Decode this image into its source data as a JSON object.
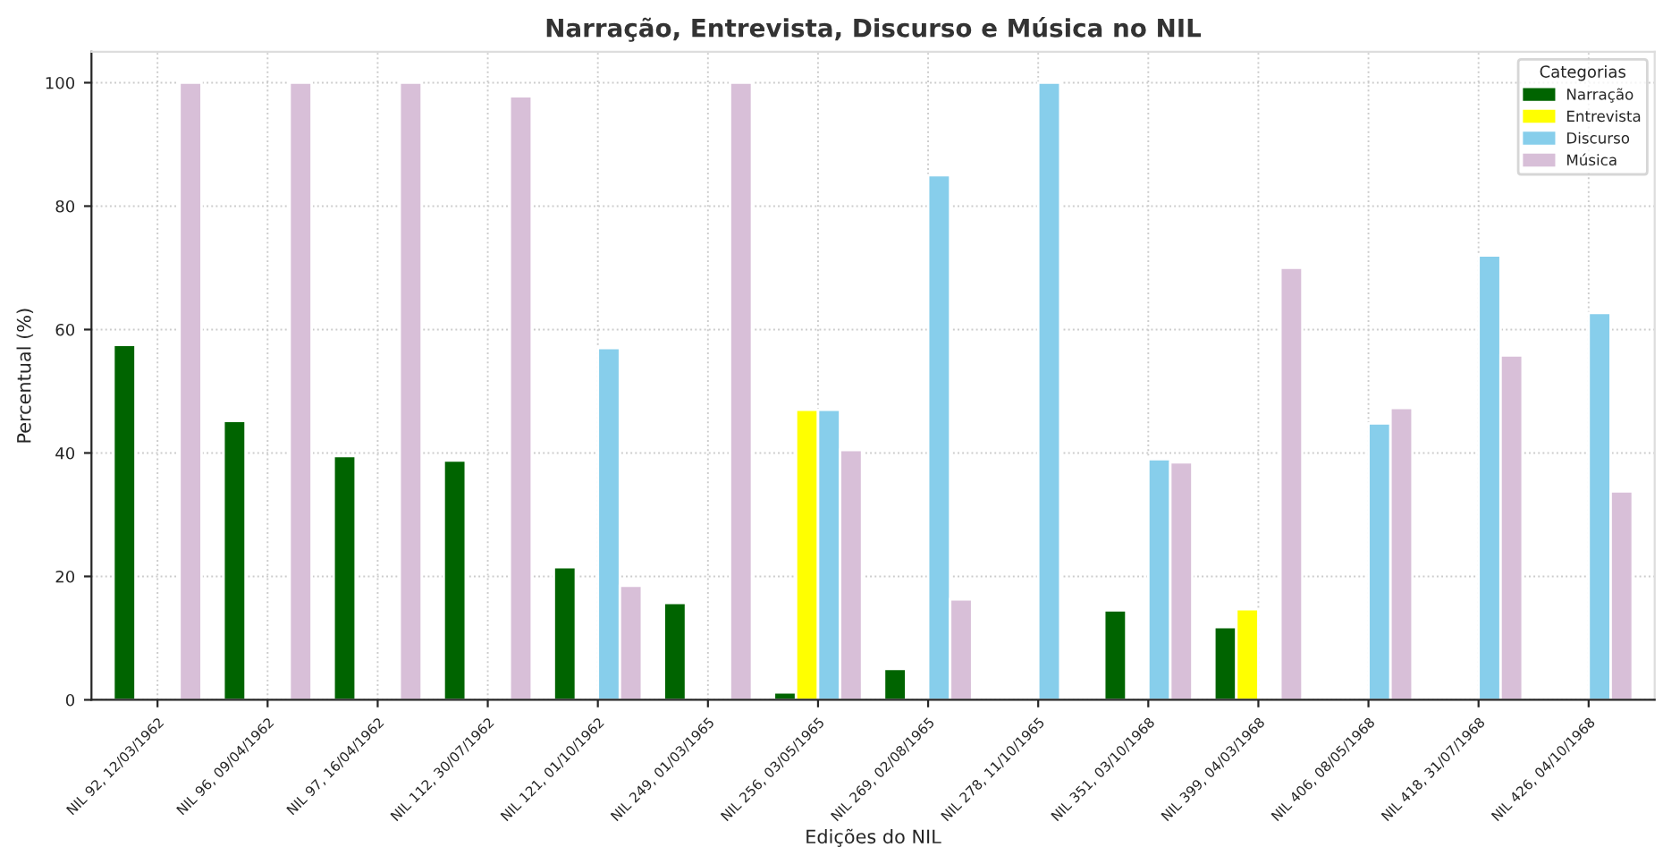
{
  "chart_data": {
    "type": "bar",
    "title": "Narração, Entrevista, Discurso e Música no NIL",
    "xlabel": "Edições do NIL",
    "ylabel": "Percentual (%)",
    "legend_title": "Categorias",
    "categories": [
      "NIL 92, 12/03/1962",
      "NIL 96, 09/04/1962",
      "NIL 97, 16/04/1962",
      "NIL 112, 30/07/1962",
      "NIL 121, 01/10/1962",
      "NIL 249, 01/03/1965",
      "NIL 256, 03/05/1965",
      "NIL 269, 02/08/1965",
      "NIL 278, 11/10/1965",
      "NIL 351, 03/10/1968",
      "NIL 399, 04/03/1968",
      "NIL 406, 08/05/1968",
      "NIL 418, 31/07/1968",
      "NIL 426, 04/10/1968"
    ],
    "series": [
      {
        "name": "Narração",
        "color": "#006400",
        "values": [
          57.5,
          45.2,
          39.5,
          38.8,
          21.5,
          15.7,
          1.2,
          5.0,
          null,
          14.5,
          11.8,
          null,
          null,
          null
        ]
      },
      {
        "name": "Entrevista",
        "color": "#ffff00",
        "values": [
          null,
          null,
          null,
          null,
          null,
          null,
          47.0,
          null,
          null,
          null,
          14.7,
          null,
          null,
          null
        ]
      },
      {
        "name": "Discurso",
        "color": "#87ceeb",
        "values": [
          null,
          null,
          null,
          null,
          57.0,
          null,
          47.0,
          85.0,
          100,
          39.0,
          null,
          44.8,
          72.0,
          62.7
        ]
      },
      {
        "name": "Música",
        "color": "#d8bfd8",
        "values": [
          100,
          100,
          100,
          97.8,
          18.5,
          100,
          40.5,
          16.3,
          null,
          38.5,
          70.0,
          47.3,
          55.8,
          33.8
        ]
      }
    ],
    "ylim": [
      0,
      105
    ],
    "yticks": [
      0,
      20,
      40,
      60,
      80,
      100
    ],
    "grid": true,
    "legend": "top right"
  }
}
